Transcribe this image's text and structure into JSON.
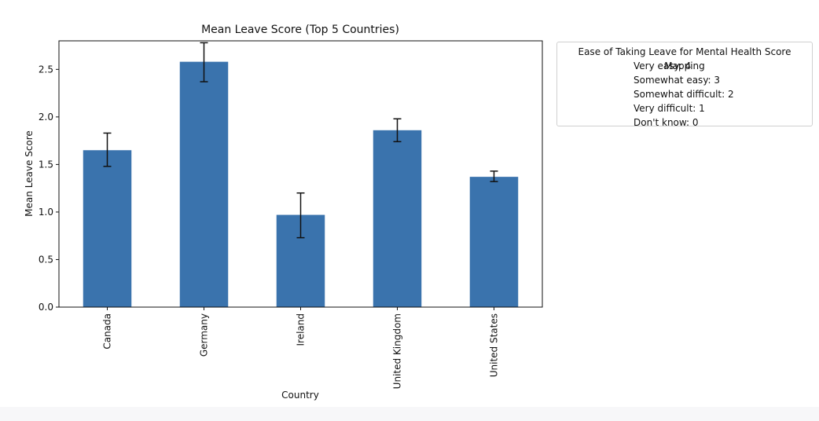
{
  "chart_data": {
    "type": "bar",
    "title": "Mean Leave Score (Top 5 Countries)",
    "xlabel": "Country",
    "ylabel": "Mean Leave Score",
    "categories": [
      "Canada",
      "Germany",
      "Ireland",
      "United Kingdom",
      "United States"
    ],
    "values": [
      1.65,
      2.58,
      0.97,
      1.86,
      1.37
    ],
    "error_bars": [
      [
        1.48,
        1.83
      ],
      [
        2.37,
        2.78
      ],
      [
        0.73,
        1.2
      ],
      [
        1.74,
        1.98
      ],
      [
        1.32,
        1.43
      ]
    ],
    "ylim": [
      0,
      2.8
    ],
    "yticks": [
      "0.0",
      "0.5",
      "1.0",
      "1.5",
      "2.0",
      "2.5"
    ],
    "bar_color": "#3a73ad",
    "grid": false,
    "legend": {
      "placement": "outside-right",
      "title": "Ease of Taking Leave for Mental Health Score Mapping",
      "entries": [
        "Very easy: 4",
        "Somewhat easy: 3",
        "Somewhat difficult: 2",
        "Very difficult: 1",
        "Don't know: 0"
      ]
    }
  }
}
